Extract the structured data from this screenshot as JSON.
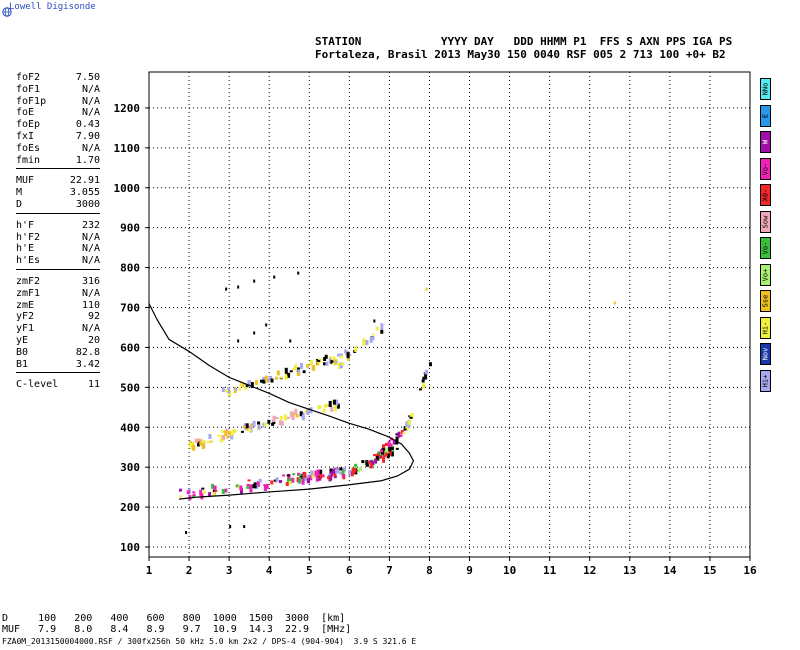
{
  "header": {
    "logo_text": "Lowell Digisonde",
    "line1": "STATION            YYYY DAY   DDD HHMM P1  FFS S AXN PPS IGA PS",
    "line2": "Fortaleza, Brasil 2013 May30 150 0040 RSF 005 2 713 100 +0+ B2"
  },
  "params": [
    [
      [
        "foF2",
        "7.50"
      ],
      [
        "foF1",
        "N/A"
      ],
      [
        "foF1p",
        "N/A"
      ],
      [
        "foE",
        "N/A"
      ],
      [
        "foEp",
        "0.43"
      ],
      [
        "fxI",
        "7.90"
      ],
      [
        "foEs",
        "N/A"
      ],
      [
        "fmin",
        "1.70"
      ]
    ],
    [
      [
        "MUF",
        "22.91"
      ],
      [
        "M",
        "3.055"
      ],
      [
        "D",
        "3000"
      ]
    ],
    [
      [
        "h'F",
        "232"
      ],
      [
        "h'F2",
        "N/A"
      ],
      [
        "h'E",
        "N/A"
      ],
      [
        "h'Es",
        "N/A"
      ]
    ],
    [
      [
        "zmF2",
        "316"
      ],
      [
        "zmF1",
        "N/A"
      ],
      [
        "zmE",
        "110"
      ],
      [
        "yF2",
        "92"
      ],
      [
        "yF1",
        "N/A"
      ],
      [
        "yE",
        "20"
      ],
      [
        "B0",
        "82.8"
      ],
      [
        "B1",
        "3.42"
      ]
    ],
    [
      [
        "C-level",
        "11"
      ]
    ]
  ],
  "legend": [
    {
      "label": "NNo",
      "color": "#55eaf0"
    },
    {
      "label": "E",
      "color": "#2898ea"
    },
    {
      "label": "W",
      "color": "#a010a8"
    },
    {
      "label": "Vo-",
      "color": "#f020b8"
    },
    {
      "label": "X0-",
      "color": "#f02828"
    },
    {
      "label": "Sow",
      "color": "#f0a8b8"
    },
    {
      "label": "Vo-",
      "color": "#38c038"
    },
    {
      "label": "Vo+",
      "color": "#a8f070"
    },
    {
      "label": "Sse",
      "color": "#f0c020"
    },
    {
      "label": "Hi-",
      "color": "#f0f040"
    },
    {
      "label": "Nov",
      "color": "#1838a8"
    },
    {
      "label": "Hi+",
      "color": "#a8a8f0"
    }
  ],
  "muf_table": {
    "line1": "D     100   200   400   600   800  1000  1500  3000  [km]",
    "line2": "MUF   7.9   8.0   8.4   8.9   9.7  10.9  14.3  22.9  [MHz]"
  },
  "footer": "FZA0M_2013150004000.RSF / 300fx256h 50 kHz 5.0 km 2x2 / DPS-4 (904-904)  3.9 S 321.6 E",
  "chart_data": {
    "type": "scatter",
    "title": "",
    "xlabel": "",
    "ylabel": "",
    "xlim": [
      1,
      16
    ],
    "ylim": [
      75,
      1290
    ],
    "x_ticks": [
      1,
      2,
      3,
      4,
      5,
      6,
      7,
      8,
      9,
      10,
      11,
      12,
      13,
      14,
      15,
      16
    ],
    "y_ticks": [
      100,
      200,
      300,
      400,
      500,
      600,
      700,
      800,
      900,
      1000,
      1100,
      1200
    ],
    "dotted_grid": true,
    "profile_curve": {
      "points": [
        [
          1.0,
          710
        ],
        [
          1.2,
          670
        ],
        [
          1.5,
          620
        ],
        [
          2.0,
          590
        ],
        [
          2.5,
          555
        ],
        [
          3.0,
          525
        ],
        [
          3.5,
          505
        ],
        [
          4.0,
          485
        ],
        [
          4.5,
          462
        ],
        [
          5.0,
          445
        ],
        [
          5.5,
          428
        ],
        [
          6.0,
          410
        ],
        [
          6.5,
          395
        ],
        [
          7.0,
          375
        ],
        [
          7.3,
          358
        ],
        [
          7.5,
          335
        ],
        [
          7.6,
          316
        ],
        [
          7.5,
          295
        ],
        [
          7.2,
          278
        ],
        [
          6.8,
          266
        ],
        [
          6.0,
          256
        ],
        [
          5.0,
          245
        ],
        [
          4.0,
          238
        ],
        [
          3.0,
          230
        ],
        [
          2.2,
          225
        ],
        [
          1.75,
          220
        ]
      ]
    },
    "traces": [
      {
        "x_start": 1.75,
        "x_end": 6.0,
        "h_start": 237,
        "h_end": 295,
        "density": 110,
        "colors": [
          "#f020b8",
          "#f020b8",
          "#a010a8",
          "#f0f040",
          "#38c038",
          "#a8a8f0",
          "#f02828",
          "#000000"
        ]
      },
      {
        "x_start": 6.0,
        "x_end": 7.2,
        "h_start": 295,
        "h_end": 355,
        "density": 40,
        "colors": [
          "#f020b8",
          "#38c038",
          "#a8f070",
          "#f02828",
          "#000000"
        ]
      },
      {
        "x_start": 6.4,
        "x_end": 7.3,
        "h_start": 305,
        "h_end": 395,
        "density": 30,
        "colors": [
          "#f020b8",
          "#f02828",
          "#a010a8",
          "#000000"
        ]
      },
      {
        "x_start": 2.0,
        "x_end": 5.8,
        "h_start": 360,
        "h_end": 470,
        "density": 85,
        "colors": [
          "#f0f040",
          "#f0f040",
          "#f0c020",
          "#000000",
          "#a8a8f0",
          "#f0a8b8"
        ]
      },
      {
        "x_start": 2.8,
        "x_end": 6.0,
        "h_start": 490,
        "h_end": 590,
        "density": 70,
        "colors": [
          "#f0f040",
          "#f0c020",
          "#000000",
          "#a8a8f0"
        ]
      },
      {
        "x_start": 5.5,
        "x_end": 6.8,
        "h_start": 550,
        "h_end": 655,
        "density": 20,
        "colors": [
          "#f0f040",
          "#000000",
          "#a8a8f0"
        ]
      },
      {
        "x_start": 7.3,
        "x_end": 8.0,
        "h_start": 380,
        "h_end": 570,
        "density": 25,
        "colors": [
          "#000000",
          "#f0f040",
          "#a8a8f0"
        ]
      }
    ],
    "isolated_points": [
      [
        2.9,
        750
      ],
      [
        3.2,
        755
      ],
      [
        3.6,
        770
      ],
      [
        4.1,
        780
      ],
      [
        4.7,
        790
      ],
      [
        7.9,
        750
      ],
      [
        12.6,
        715
      ],
      [
        1.9,
        140
      ],
      [
        3.0,
        155
      ],
      [
        3.35,
        155
      ],
      [
        3.2,
        620
      ],
      [
        3.6,
        640
      ],
      [
        3.9,
        660
      ],
      [
        4.5,
        620
      ],
      [
        6.6,
        670
      ]
    ]
  }
}
